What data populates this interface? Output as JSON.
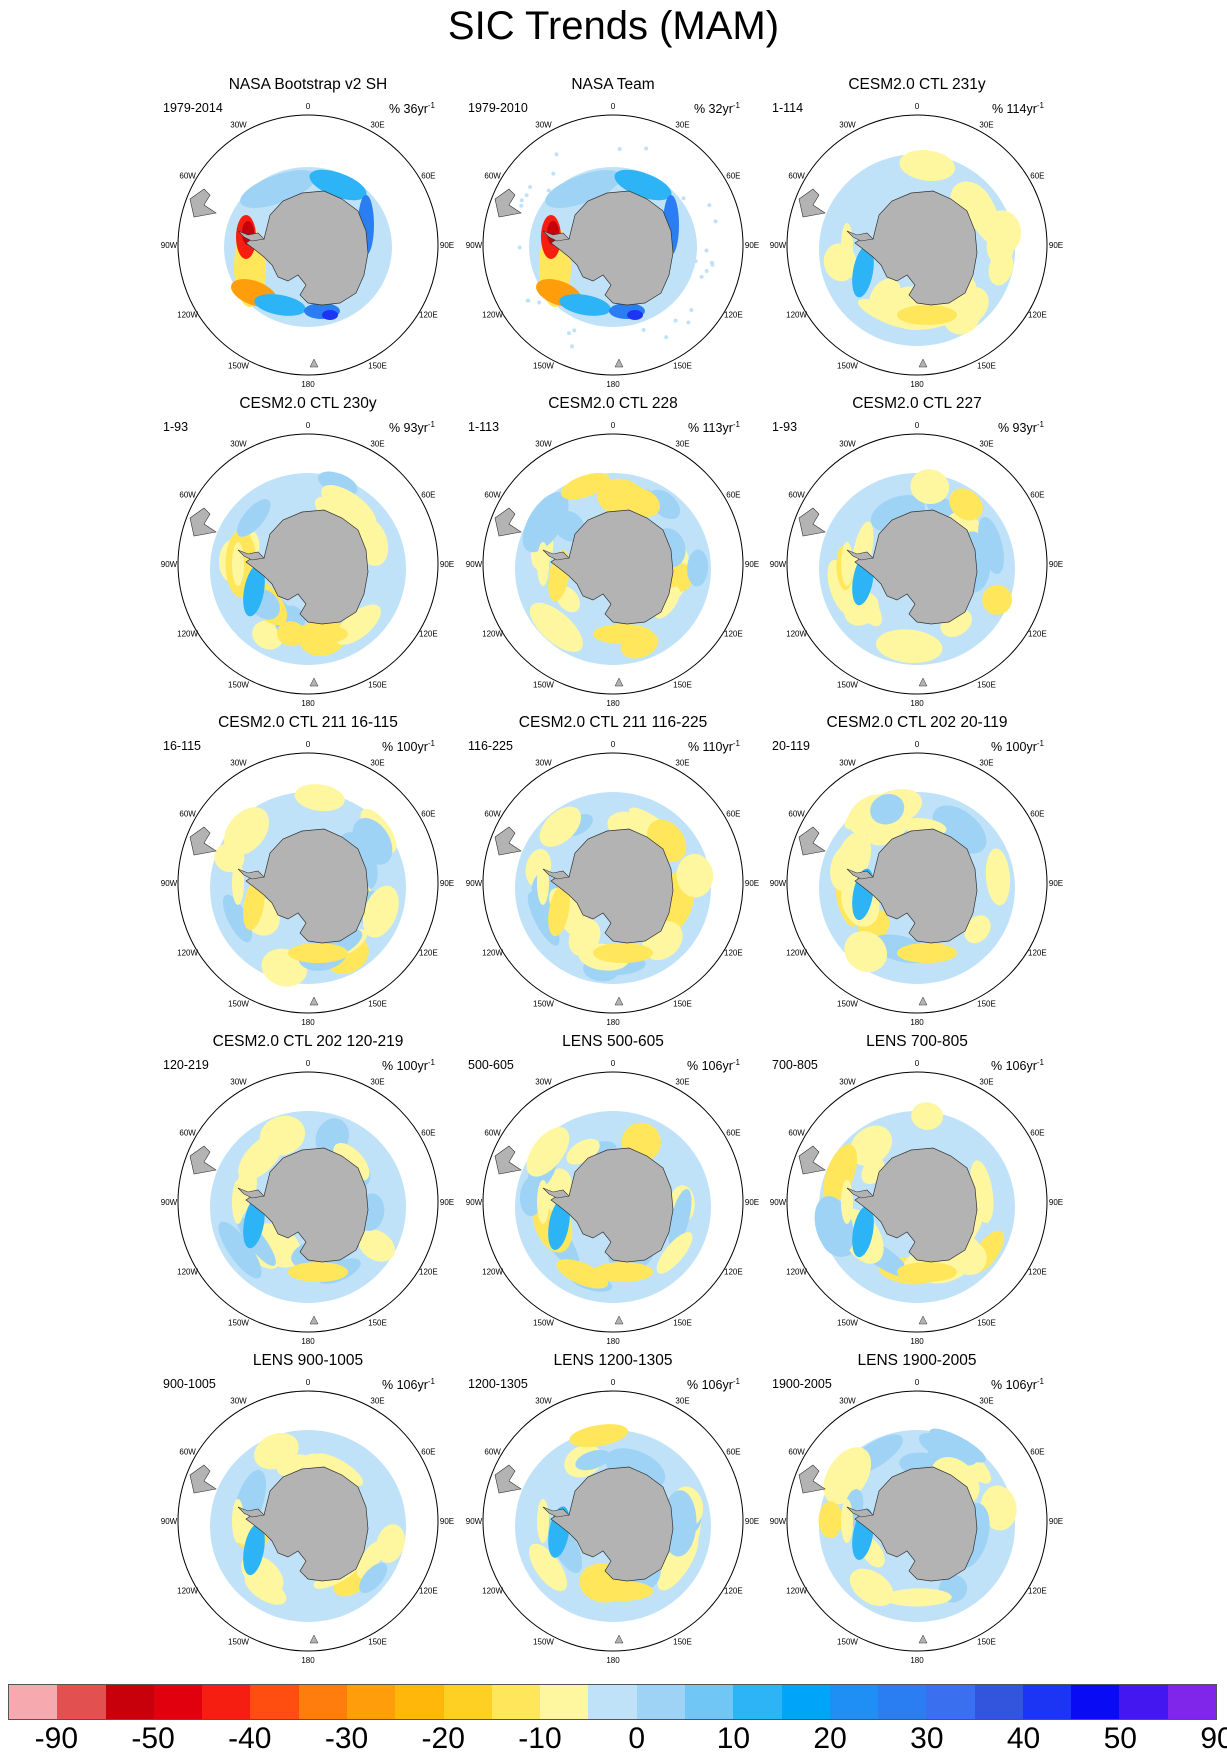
{
  "title": "SIC Trends (MAM)",
  "lon_labels": [
    "0",
    "30E",
    "60E",
    "90E",
    "120E",
    "150E",
    "180",
    "150W",
    "120W",
    "90W",
    "60W",
    "30W"
  ],
  "panels": [
    {
      "title": "NASA Bootstrap v2 SH",
      "range": "1979-2014",
      "unit": "% 36yr",
      "exp": "-1",
      "pattern": "bootstrap"
    },
    {
      "title": "NASA Team",
      "range": "1979-2010",
      "unit": "% 32yr",
      "exp": "-1",
      "pattern": "team"
    },
    {
      "title": "CESM2.0 CTL 231y",
      "range": "1-114",
      "unit": "% 114yr",
      "exp": "-1",
      "pattern": "model"
    },
    {
      "title": "CESM2.0 CTL 230y",
      "range": "1-93",
      "unit": "% 93yr",
      "exp": "-1",
      "pattern": "model"
    },
    {
      "title": "CESM2.0 CTL 228",
      "range": "1-113",
      "unit": "% 113yr",
      "exp": "-1",
      "pattern": "model"
    },
    {
      "title": "CESM2.0 CTL 227",
      "range": "1-93",
      "unit": "% 93yr",
      "exp": "-1",
      "pattern": "model"
    },
    {
      "title": "CESM2.0 CTL 211 16-115",
      "range": "16-115",
      "unit": "% 100yr",
      "exp": "-1",
      "pattern": "model"
    },
    {
      "title": "CESM2.0 CTL 211 116-225",
      "range": "116-225",
      "unit": "% 110yr",
      "exp": "-1",
      "pattern": "model"
    },
    {
      "title": "CESM2.0 CTL 202 20-119",
      "range": "20-119",
      "unit": "% 100yr",
      "exp": "-1",
      "pattern": "model"
    },
    {
      "title": "CESM2.0 CTL 202 120-219",
      "range": "120-219",
      "unit": "% 100yr",
      "exp": "-1",
      "pattern": "model"
    },
    {
      "title": "LENS 500-605",
      "range": "500-605",
      "unit": "% 106yr",
      "exp": "-1",
      "pattern": "model"
    },
    {
      "title": "LENS 700-805",
      "range": "700-805",
      "unit": "% 106yr",
      "exp": "-1",
      "pattern": "model"
    },
    {
      "title": "LENS 900-1005",
      "range": "900-1005",
      "unit": "% 106yr",
      "exp": "-1",
      "pattern": "model"
    },
    {
      "title": "LENS 1200-1305",
      "range": "1200-1305",
      "unit": "% 106yr",
      "exp": "-1",
      "pattern": "model"
    },
    {
      "title": "LENS 1900-2005",
      "range": "1900-2005",
      "unit": "% 106yr",
      "exp": "-1",
      "pattern": "model"
    }
  ],
  "colorbar": {
    "colors": [
      "#f7a9b0",
      "#e2504f",
      "#c8000c",
      "#e1000e",
      "#f51e10",
      "#ff4e10",
      "#ff7d0c",
      "#ff9e0a",
      "#ffb80a",
      "#ffd024",
      "#ffe65a",
      "#fff6a0",
      "#c0e2f8",
      "#9fd3f5",
      "#70c6f4",
      "#2cb4f6",
      "#00a4f8",
      "#1f8ff5",
      "#2b7ef2",
      "#3a6ff0",
      "#3354dc",
      "#1c35f5",
      "#0a0bf5",
      "#4417f0",
      "#8026ea"
    ],
    "labels": [
      "-90",
      "-50",
      "-40",
      "-30",
      "-20",
      "-10",
      "0",
      "10",
      "20",
      "30",
      "40",
      "50",
      "90"
    ]
  }
}
